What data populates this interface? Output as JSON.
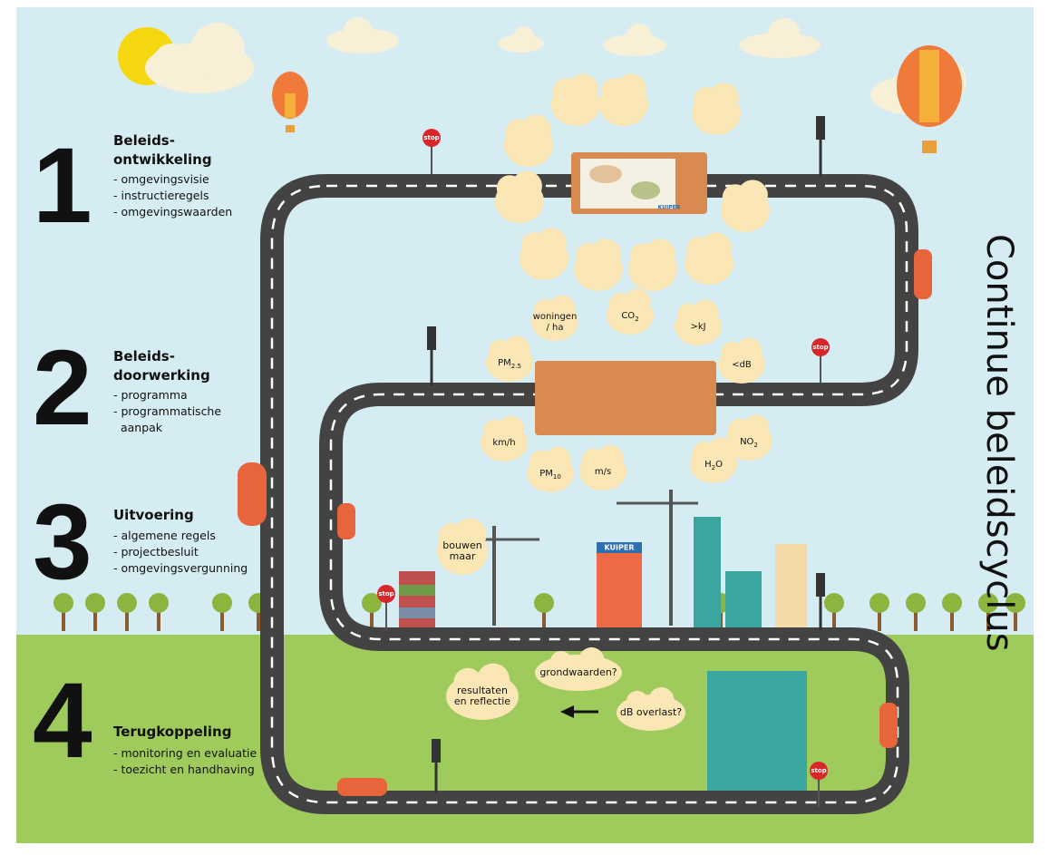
{
  "title": "Continue beleidscyclus",
  "stages": [
    {
      "number": "1",
      "title": [
        "Beleids-",
        "ontwikkeling"
      ],
      "items": [
        "- omgevingsvisie",
        "- instructieregels",
        "- omgevingswaarden"
      ]
    },
    {
      "number": "2",
      "title": [
        "Beleids-",
        "doorwerking"
      ],
      "items": [
        "- programma",
        "- programmatische",
        "  aanpak"
      ]
    },
    {
      "number": "3",
      "title": [
        "Uitvoering"
      ],
      "items": [
        "- algemene regels",
        "- projectbesluit",
        "- omgevingsvergunning"
      ]
    },
    {
      "number": "4",
      "title": [
        "Terugkoppeling"
      ],
      "items": [
        "- monitoring en evaluatie",
        "- toezicht en handhaving"
      ]
    }
  ],
  "indicators": [
    {
      "lines": [
        "woningen",
        "/ ha"
      ]
    },
    {
      "text": "CO",
      "sub": "2"
    },
    {
      "lines": [
        ">kJ"
      ]
    },
    {
      "lines": [
        "<dB"
      ]
    },
    {
      "text": "PM",
      "sub": "2.5"
    },
    {
      "lines": [
        "km/h"
      ]
    },
    {
      "text": "PM",
      "sub": "10"
    },
    {
      "lines": [
        "m/s"
      ]
    },
    {
      "text": "H",
      "sub": "2",
      "tail": "O"
    },
    {
      "text": "NO",
      "sub": "2"
    }
  ],
  "speech": [
    {
      "lines": [
        "bouwen",
        "maar"
      ]
    },
    {
      "lines": [
        "resultaten",
        "en reflectie"
      ]
    },
    {
      "lines": [
        "grondwaarden?"
      ]
    },
    {
      "lines": [
        "dB overlast?"
      ]
    }
  ],
  "signs": [
    "stop",
    "stop",
    "stop",
    "stop"
  ],
  "brand": "KUIPER"
}
